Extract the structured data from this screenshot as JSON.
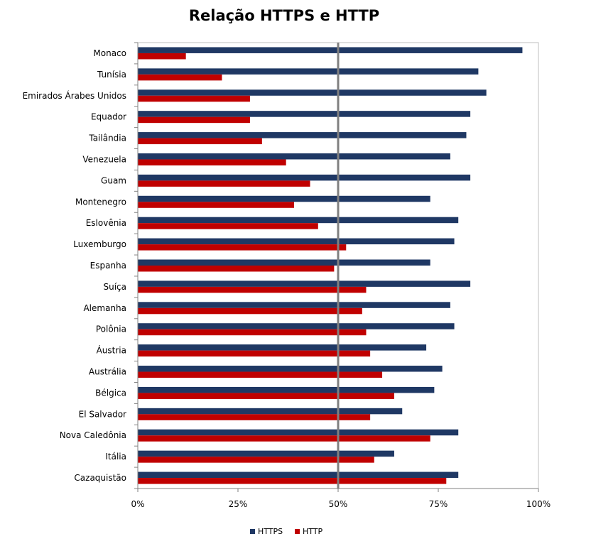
{
  "chart_data": {
    "type": "bar",
    "orientation": "horizontal",
    "title": "Relação HTTPS e HTTP",
    "xlabel": "",
    "ylabel": "",
    "xlim": [
      0,
      1
    ],
    "x_ticks": [
      {
        "value": 0,
        "label": "0%"
      },
      {
        "value": 0.25,
        "label": "25%"
      },
      {
        "value": 0.5,
        "label": "50%"
      },
      {
        "value": 0.75,
        "label": "75%"
      },
      {
        "value": 1,
        "label": "100%"
      }
    ],
    "reference_line": 0.5,
    "grid": false,
    "legend_position": "bottom",
    "categories": [
      "Monaco",
      "Tunísia",
      "Emirados Árabes Unidos",
      "Equador",
      "Tailândia",
      "Venezuela",
      "Guam",
      "Montenegro",
      "Eslovênia",
      "Luxemburgo",
      "Espanha",
      "Suíça",
      "Alemanha",
      "Polônia",
      "Áustria",
      "Austrália",
      "Bélgica",
      "El Salvador",
      "Nova Caledônia",
      "Itália",
      "Cazaquistão"
    ],
    "series": [
      {
        "name": "HTTPS",
        "color": "#1F3864",
        "values": [
          0.96,
          0.85,
          0.87,
          0.83,
          0.82,
          0.78,
          0.83,
          0.73,
          0.8,
          0.79,
          0.73,
          0.83,
          0.78,
          0.79,
          0.72,
          0.76,
          0.74,
          0.66,
          0.8,
          0.64,
          0.8
        ]
      },
      {
        "name": "HTTP",
        "color": "#C00000",
        "values": [
          0.12,
          0.21,
          0.28,
          0.28,
          0.31,
          0.37,
          0.43,
          0.39,
          0.45,
          0.52,
          0.49,
          0.57,
          0.56,
          0.57,
          0.58,
          0.61,
          0.64,
          0.58,
          0.73,
          0.59,
          0.77
        ]
      }
    ]
  }
}
